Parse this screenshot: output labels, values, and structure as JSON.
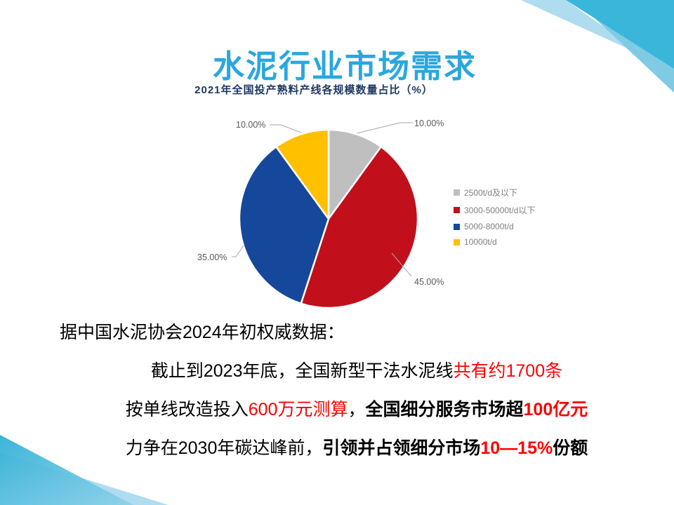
{
  "page_title": "水泥行业市场需求",
  "chart_data": {
    "type": "pie",
    "title": "2021年全国投产熟料产线各规模数量占比（%）",
    "legend_position": "right",
    "start_angle_deg": -90,
    "direction": "clockwise",
    "slices": [
      {
        "label": "2500t/d及以下",
        "value": 10,
        "pct_label": "10.00%",
        "color": "#BFBFBF"
      },
      {
        "label": "3000-50000t/d以下",
        "value": 45,
        "pct_label": "45.00%",
        "color": "#C1101C"
      },
      {
        "label": "5000-8000t/d",
        "value": 35,
        "pct_label": "35.00%",
        "color": "#15489B"
      },
      {
        "label": "10000t/d",
        "value": 10,
        "pct_label": "10.00%",
        "color": "#FFC000"
      }
    ]
  },
  "body": {
    "lines": [
      {
        "segments": [
          {
            "text": "据中国水泥协会2024年初权威数据："
          }
        ]
      },
      {
        "segments": [
          {
            "text": "截止到2023年底，全国新型干法水泥线"
          },
          {
            "text": "共有约1700条"
          }
        ]
      },
      {
        "segments": [
          {
            "text": "按单线改造投入"
          },
          {
            "text": "600万元测算"
          },
          {
            "text": "，"
          },
          {
            "text": "全国细分服务市场超"
          },
          {
            "text": "100亿元"
          }
        ]
      },
      {
        "segments": [
          {
            "text": "力争在2030年碳达峰前，"
          },
          {
            "text": "引领并占领细分市场"
          },
          {
            "text": "10—15%"
          },
          {
            "text": "份额"
          }
        ]
      }
    ]
  },
  "colors": {
    "main_title": "#2AA7DF",
    "chart_title": "#1F3864",
    "label_text": "#595959",
    "legend_text": "#7F7F7F",
    "red_text": "#FF0000",
    "deco_cyan": "#3AB6DB",
    "deco_light": "#AFDCEF",
    "leader_line": "#A6A6A6"
  }
}
